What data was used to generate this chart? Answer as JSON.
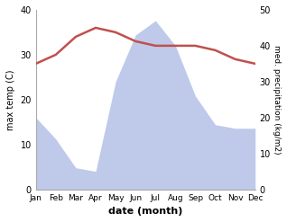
{
  "months": [
    "Jan",
    "Feb",
    "Mar",
    "Apr",
    "May",
    "Jun",
    "Jul",
    "Aug",
    "Sep",
    "Oct",
    "Nov",
    "Dec"
  ],
  "temperature": [
    28,
    30,
    34,
    36,
    35,
    33,
    32,
    32,
    32,
    31,
    29,
    28
  ],
  "precipitation": [
    20,
    14,
    6,
    5,
    30,
    43,
    47,
    40,
    26,
    18,
    17,
    17
  ],
  "temp_color": "#c0504d",
  "precip_color": "#b8c4e8",
  "left_ylim": [
    0,
    40
  ],
  "right_ylim": [
    0,
    50
  ],
  "left_yticks": [
    0,
    10,
    20,
    30,
    40
  ],
  "right_yticks": [
    0,
    10,
    20,
    30,
    40,
    50
  ],
  "xlabel": "date (month)",
  "ylabel_left": "max temp (C)",
  "ylabel_right": "med. precipitation (kg/m2)"
}
